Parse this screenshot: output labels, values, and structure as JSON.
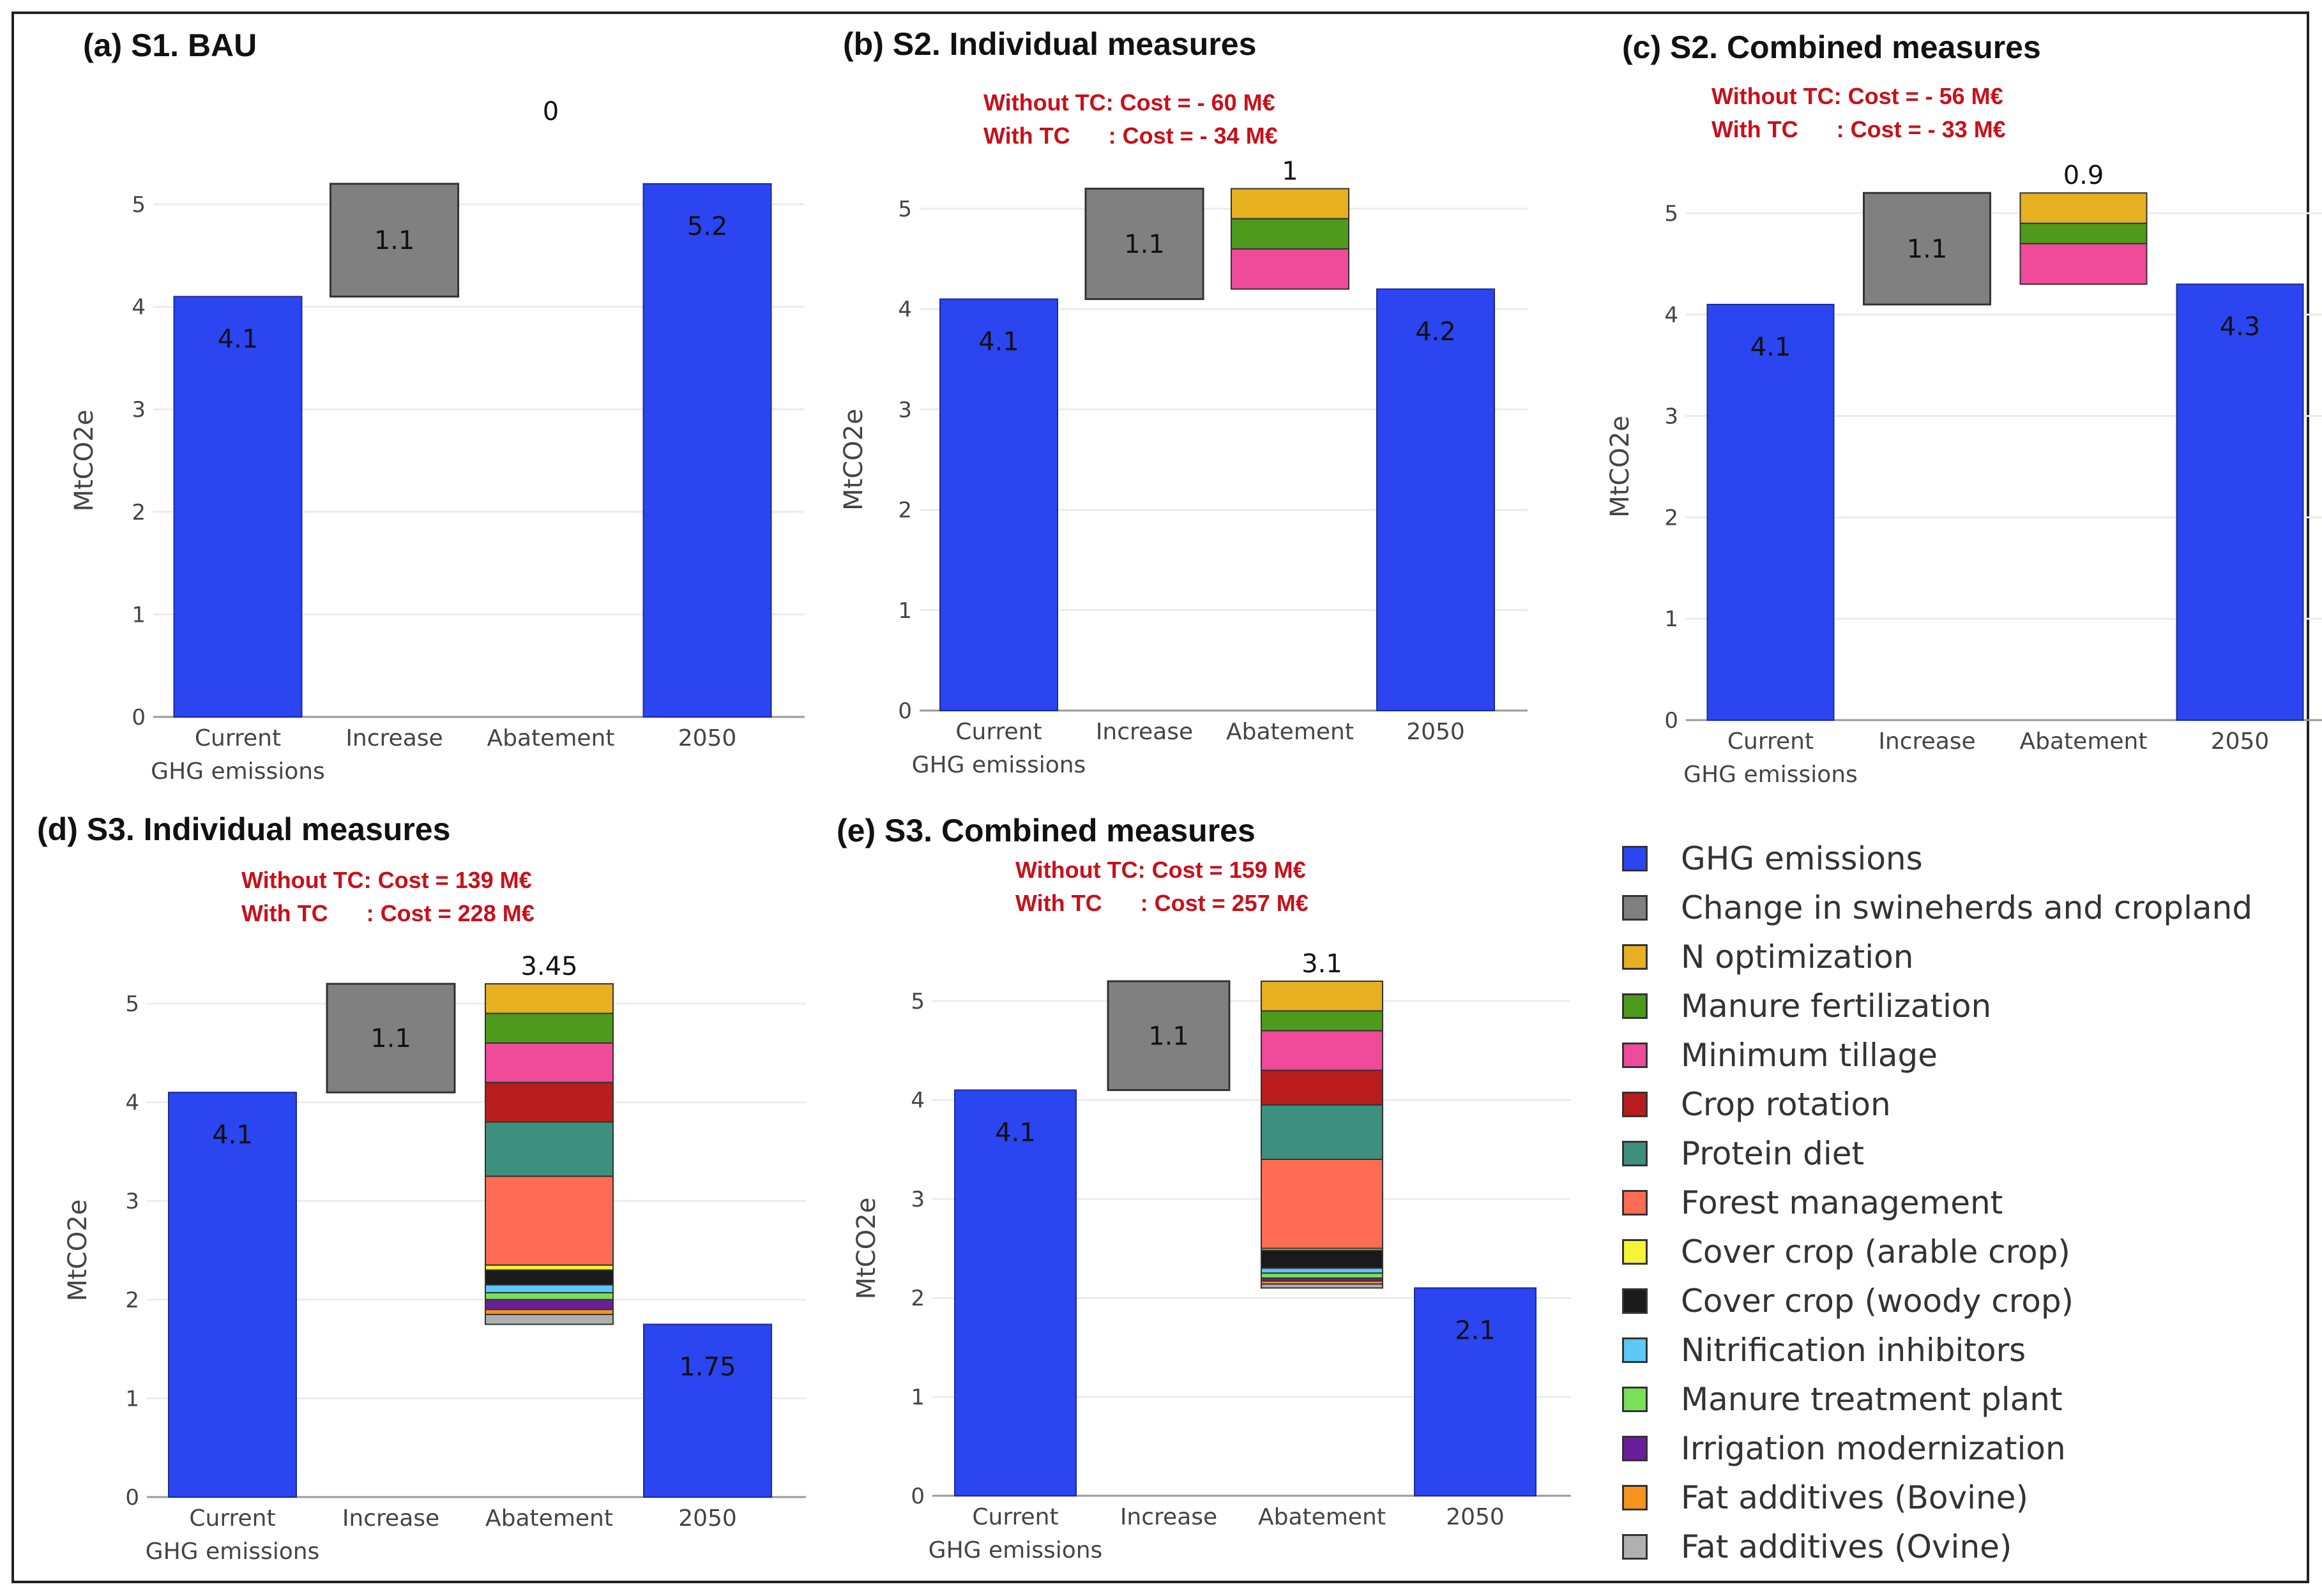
{
  "colors": {
    "GHG emissions": "#2b45f0",
    "Change in swineherds and cropland": "#808080",
    "N optimization": "#e6b020",
    "Manure fertilization": "#4e9a1c",
    "Minimum tillage": "#f04a9a",
    "Crop rotation": "#b81c1c",
    "Protein diet": "#3d8f7e",
    "Forest management": "#ff6b55",
    "Cover crop (arable crop)": "#f5f536",
    "Cover crop (woody crop)": "#1a1a1a",
    "Nitrification inhibitors": "#5bc8f5",
    "Manure treatment plant": "#7ae05a",
    "Irrigation modernization": "#6a1f9a",
    "Fat additives (Bovine)": "#f7941d",
    "Fat additives (Ovine)": "#b0b0b0"
  },
  "legend": {
    "items": [
      "GHG emissions",
      "Change in swineherds and cropland",
      "N optimization",
      "Manure fertilization",
      "Minimum tillage",
      "Crop rotation",
      "Protein diet",
      "Forest management",
      "Cover crop (arable crop)",
      "Cover crop (woody crop)",
      "Nitrification inhibitors",
      "Manure treatment plant",
      "Irrigation modernization",
      "Fat additives (Bovine)",
      "Fat additives (Ovine)"
    ]
  },
  "chart_data": [
    {
      "type": "bar",
      "title": "(a) S1. BAU",
      "cost_without_tc": "",
      "cost_with_tc": "",
      "ylabel": "MtCO2e",
      "ylim": [
        0,
        5.3
      ],
      "yticks": [
        0,
        1,
        2,
        3,
        4,
        5
      ],
      "categories": [
        "Current GHG emissions",
        "Increase",
        "Abatement",
        "2050"
      ],
      "category_labels": [
        [
          "Current",
          "GHG emissions"
        ],
        [
          "Increase"
        ],
        [
          "Abatement"
        ],
        [
          "2050"
        ]
      ],
      "current": 4.1,
      "increase": 1.1,
      "abatement_total": 0,
      "abatement_label": "0",
      "abatement_segments": [],
      "final": 5.2,
      "bar_labels": [
        "4.1",
        "1.1",
        "5.2"
      ]
    },
    {
      "type": "bar",
      "title": "(b) S2. Individual measures",
      "cost_without_tc": "Without TC: Cost = - 60 M€",
      "cost_with_tc": "With TC      : Cost = - 34 M€",
      "ylabel": "MtCO2e",
      "ylim": [
        0,
        5.3
      ],
      "yticks": [
        0,
        1,
        2,
        3,
        4,
        5
      ],
      "categories": [
        "Current GHG emissions",
        "Increase",
        "Abatement",
        "2050"
      ],
      "category_labels": [
        [
          "Current",
          "GHG emissions"
        ],
        [
          "Increase"
        ],
        [
          "Abatement"
        ],
        [
          "2050"
        ]
      ],
      "current": 4.1,
      "increase": 1.1,
      "abatement_total": 1,
      "abatement_label": "1",
      "abatement_segments": [
        {
          "name": "N optimization",
          "value": 0.3
        },
        {
          "name": "Manure fertilization",
          "value": 0.3
        },
        {
          "name": "Minimum tillage",
          "value": 0.4
        }
      ],
      "final": 4.2,
      "bar_labels": [
        "4.1",
        "1.1",
        "4.2"
      ]
    },
    {
      "type": "bar",
      "title": "(c) S2. Combined measures",
      "cost_without_tc": "Without TC: Cost = - 56 M€",
      "cost_with_tc": "With TC      : Cost = - 33 M€",
      "ylabel": "MtCO2e",
      "ylim": [
        0,
        5.3
      ],
      "yticks": [
        0,
        1,
        2,
        3,
        4,
        5
      ],
      "categories": [
        "Current GHG emissions",
        "Increase",
        "Abatement",
        "2050"
      ],
      "category_labels": [
        [
          "Current",
          "GHG emissions"
        ],
        [
          "Increase"
        ],
        [
          "Abatement"
        ],
        [
          "2050"
        ]
      ],
      "current": 4.1,
      "increase": 1.1,
      "abatement_total": 0.9,
      "abatement_label": "0.9",
      "abatement_segments": [
        {
          "name": "N optimization",
          "value": 0.3
        },
        {
          "name": "Manure fertilization",
          "value": 0.2
        },
        {
          "name": "Minimum tillage",
          "value": 0.4
        }
      ],
      "final": 4.3,
      "bar_labels": [
        "4.1",
        "1.1",
        "4.3"
      ]
    },
    {
      "type": "bar",
      "title": "(d) S3. Individual measures",
      "cost_without_tc": "Without TC: Cost = 139 M€",
      "cost_with_tc": "With TC      : Cost = 228 M€",
      "ylabel": "MtCO2e",
      "ylim": [
        0,
        5.3
      ],
      "yticks": [
        0,
        1,
        2,
        3,
        4,
        5
      ],
      "categories": [
        "Current GHG emissions",
        "Increase",
        "Abatement",
        "2050"
      ],
      "category_labels": [
        [
          "Current",
          "GHG emissions"
        ],
        [
          "Increase"
        ],
        [
          "Abatement"
        ],
        [
          "2050"
        ]
      ],
      "current": 4.1,
      "increase": 1.1,
      "abatement_total": 3.45,
      "abatement_label": "3.45",
      "abatement_segments": [
        {
          "name": "N optimization",
          "value": 0.3
        },
        {
          "name": "Manure fertilization",
          "value": 0.3
        },
        {
          "name": "Minimum tillage",
          "value": 0.4
        },
        {
          "name": "Crop rotation",
          "value": 0.4
        },
        {
          "name": "Protein diet",
          "value": 0.55
        },
        {
          "name": "Forest management",
          "value": 0.9
        },
        {
          "name": "Cover crop (arable crop)",
          "value": 0.05
        },
        {
          "name": "Cover crop (woody crop)",
          "value": 0.15
        },
        {
          "name": "Nitrification inhibitors",
          "value": 0.08
        },
        {
          "name": "Manure treatment plant",
          "value": 0.07
        },
        {
          "name": "Irrigation modernization",
          "value": 0.1
        },
        {
          "name": "Fat additives (Bovine)",
          "value": 0.05
        },
        {
          "name": "Fat additives (Ovine)",
          "value": 0.1
        }
      ],
      "final": 1.75,
      "bar_labels": [
        "4.1",
        "1.1",
        "1.75"
      ]
    },
    {
      "type": "bar",
      "title": "(e) S3. Combined measures",
      "cost_without_tc": "Without TC: Cost = 159 M€",
      "cost_with_tc": "With TC      : Cost = 257 M€",
      "ylabel": "MtCO2e",
      "ylim": [
        0,
        5.3
      ],
      "yticks": [
        0,
        1,
        2,
        3,
        4,
        5
      ],
      "categories": [
        "Current GHG emissions",
        "Increase",
        "Abatement",
        "2050"
      ],
      "category_labels": [
        [
          "Current",
          "GHG emissions"
        ],
        [
          "Increase"
        ],
        [
          "Abatement"
        ],
        [
          "2050"
        ]
      ],
      "current": 4.1,
      "increase": 1.1,
      "abatement_total": 3.1,
      "abatement_label": "3.1",
      "abatement_segments": [
        {
          "name": "N optimization",
          "value": 0.3
        },
        {
          "name": "Manure fertilization",
          "value": 0.2
        },
        {
          "name": "Minimum tillage",
          "value": 0.4
        },
        {
          "name": "Crop rotation",
          "value": 0.35
        },
        {
          "name": "Protein diet",
          "value": 0.55
        },
        {
          "name": "Forest management",
          "value": 0.9
        },
        {
          "name": "Cover crop (arable crop)",
          "value": 0.02
        },
        {
          "name": "Cover crop (woody crop)",
          "value": 0.18
        },
        {
          "name": "Nitrification inhibitors",
          "value": 0.05
        },
        {
          "name": "Manure treatment plant",
          "value": 0.05
        },
        {
          "name": "Irrigation modernization",
          "value": 0.03
        },
        {
          "name": "Fat additives (Bovine)",
          "value": 0.03
        },
        {
          "name": "Fat additives (Ovine)",
          "value": 0.04
        }
      ],
      "final": 2.1,
      "bar_labels": [
        "4.1",
        "1.1",
        "2.1"
      ]
    }
  ]
}
